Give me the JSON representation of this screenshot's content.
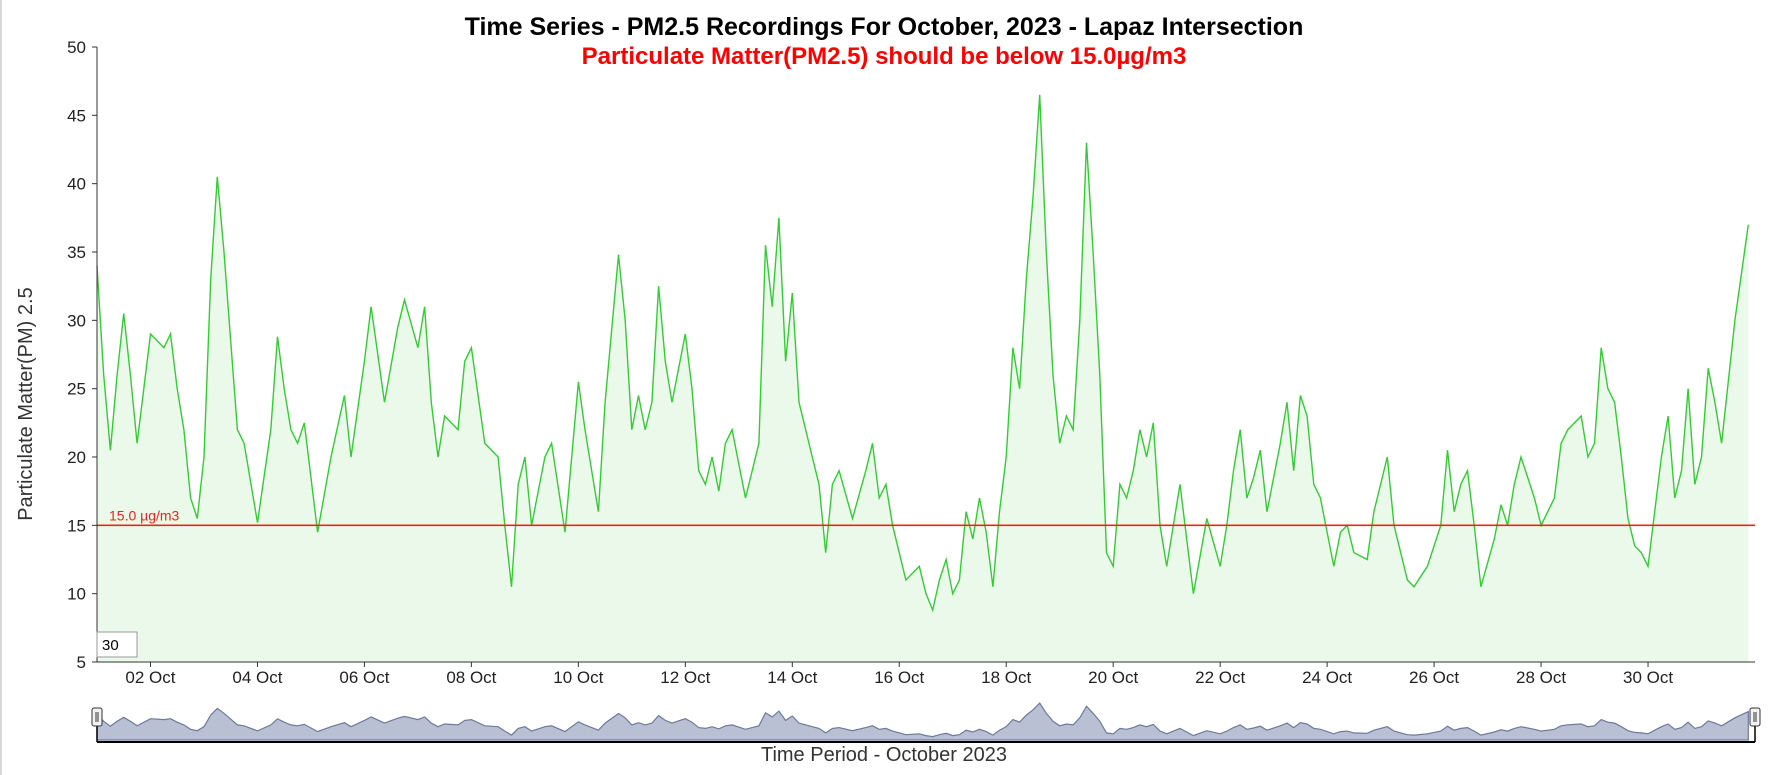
{
  "chart_data": {
    "type": "area",
    "title": "Time Series - PM2.5 Recordings For October, 2023 - Lapaz Intersection",
    "subtitle": "Particulate Matter(PM2.5) should be below 15.0µg/m3",
    "xlabel": "Time Period - October 2023",
    "ylabel": "Particulate Matter(PM) 2.5",
    "x_range": [
      "2023-10-01",
      "2023-11-01"
    ],
    "ylim": [
      5,
      50
    ],
    "y_ticks": [
      5,
      10,
      15,
      20,
      25,
      30,
      35,
      40,
      45,
      50
    ],
    "x_ticks": [
      {
        "date": "2023-10-02",
        "label": "02 Oct"
      },
      {
        "date": "2023-10-04",
        "label": "04 Oct"
      },
      {
        "date": "2023-10-06",
        "label": "06 Oct"
      },
      {
        "date": "2023-10-08",
        "label": "08 Oct"
      },
      {
        "date": "2023-10-10",
        "label": "10 Oct"
      },
      {
        "date": "2023-10-12",
        "label": "12 Oct"
      },
      {
        "date": "2023-10-14",
        "label": "14 Oct"
      },
      {
        "date": "2023-10-16",
        "label": "16 Oct"
      },
      {
        "date": "2023-10-18",
        "label": "18 Oct"
      },
      {
        "date": "2023-10-20",
        "label": "20 Oct"
      },
      {
        "date": "2023-10-22",
        "label": "22 Oct"
      },
      {
        "date": "2023-10-24",
        "label": "24 Oct"
      },
      {
        "date": "2023-10-26",
        "label": "26 Oct"
      },
      {
        "date": "2023-10-28",
        "label": "28 Oct"
      },
      {
        "date": "2023-10-30",
        "label": "30 Oct"
      }
    ],
    "threshold": {
      "value": 15.0,
      "label": "15.0 µg/m3",
      "color": "#e8261c"
    },
    "rolling_window_value": "30",
    "grid": false,
    "colors": {
      "line": "#33cc33",
      "fill": "#ebf9eb",
      "navigator_fill": "#b9c0d4",
      "navigator_line": "#6e7a9a"
    },
    "series": [
      {
        "points": [
          [
            "2023-10-01 00:00",
            34
          ],
          [
            "2023-10-01 03:00",
            26
          ],
          [
            "2023-10-01 06:00",
            20.5
          ],
          [
            "2023-10-01 09:00",
            26
          ],
          [
            "2023-10-01 12:00",
            30.5
          ],
          [
            "2023-10-01 15:00",
            26
          ],
          [
            "2023-10-01 18:00",
            21
          ],
          [
            "2023-10-02 00:00",
            29
          ],
          [
            "2023-10-02 06:00",
            28
          ],
          [
            "2023-10-02 09:00",
            29
          ],
          [
            "2023-10-02 12:00",
            25
          ],
          [
            "2023-10-02 15:00",
            22
          ],
          [
            "2023-10-02 18:00",
            17
          ],
          [
            "2023-10-02 21:00",
            15.5
          ],
          [
            "2023-10-03 00:00",
            20
          ],
          [
            "2023-10-03 03:00",
            33
          ],
          [
            "2023-10-03 06:00",
            40.5
          ],
          [
            "2023-10-03 09:00",
            35
          ],
          [
            "2023-10-03 12:00",
            28.5
          ],
          [
            "2023-10-03 15:00",
            22
          ],
          [
            "2023-10-03 18:00",
            21
          ],
          [
            "2023-10-04 00:00",
            15.2
          ],
          [
            "2023-10-04 06:00",
            22
          ],
          [
            "2023-10-04 09:00",
            28.8
          ],
          [
            "2023-10-04 12:00",
            25
          ],
          [
            "2023-10-04 15:00",
            22
          ],
          [
            "2023-10-04 18:00",
            21
          ],
          [
            "2023-10-04 21:00",
            22.5
          ],
          [
            "2023-10-05 03:00",
            14.5
          ],
          [
            "2023-10-05 09:00",
            20
          ],
          [
            "2023-10-05 15:00",
            24.5
          ],
          [
            "2023-10-05 18:00",
            20
          ],
          [
            "2023-10-06 00:00",
            27
          ],
          [
            "2023-10-06 03:00",
            31
          ],
          [
            "2023-10-06 09:00",
            24
          ],
          [
            "2023-10-06 15:00",
            29.5
          ],
          [
            "2023-10-06 18:00",
            31.5
          ],
          [
            "2023-10-07 00:00",
            28
          ],
          [
            "2023-10-07 03:00",
            31
          ],
          [
            "2023-10-07 06:00",
            24
          ],
          [
            "2023-10-07 09:00",
            20
          ],
          [
            "2023-10-07 12:00",
            23
          ],
          [
            "2023-10-07 18:00",
            22
          ],
          [
            "2023-10-07 21:00",
            27
          ],
          [
            "2023-10-08 00:00",
            28
          ],
          [
            "2023-10-08 06:00",
            21
          ],
          [
            "2023-10-08 12:00",
            20
          ],
          [
            "2023-10-08 15:00",
            15
          ],
          [
            "2023-10-08 18:00",
            10.5
          ],
          [
            "2023-10-08 21:00",
            18
          ],
          [
            "2023-10-09 00:00",
            20
          ],
          [
            "2023-10-09 03:00",
            15
          ],
          [
            "2023-10-09 09:00",
            20
          ],
          [
            "2023-10-09 12:00",
            21
          ],
          [
            "2023-10-09 18:00",
            14.5
          ],
          [
            "2023-10-10 00:00",
            25.5
          ],
          [
            "2023-10-10 03:00",
            22
          ],
          [
            "2023-10-10 09:00",
            16
          ],
          [
            "2023-10-10 12:00",
            24
          ],
          [
            "2023-10-10 18:00",
            34.8
          ],
          [
            "2023-10-10 21:00",
            30
          ],
          [
            "2023-10-11 00:00",
            22
          ],
          [
            "2023-10-11 03:00",
            24.5
          ],
          [
            "2023-10-11 06:00",
            22
          ],
          [
            "2023-10-11 09:00",
            24
          ],
          [
            "2023-10-11 12:00",
            32.5
          ],
          [
            "2023-10-11 15:00",
            27
          ],
          [
            "2023-10-11 18:00",
            24
          ],
          [
            "2023-10-12 00:00",
            29
          ],
          [
            "2023-10-12 03:00",
            25
          ],
          [
            "2023-10-12 06:00",
            19
          ],
          [
            "2023-10-12 09:00",
            18
          ],
          [
            "2023-10-12 12:00",
            20
          ],
          [
            "2023-10-12 15:00",
            17.5
          ],
          [
            "2023-10-12 18:00",
            21
          ],
          [
            "2023-10-12 21:00",
            22
          ],
          [
            "2023-10-13 03:00",
            17
          ],
          [
            "2023-10-13 09:00",
            21
          ],
          [
            "2023-10-13 12:00",
            35.5
          ],
          [
            "2023-10-13 15:00",
            31
          ],
          [
            "2023-10-13 18:00",
            37.5
          ],
          [
            "2023-10-13 21:00",
            27
          ],
          [
            "2023-10-14 00:00",
            32
          ],
          [
            "2023-10-14 03:00",
            24
          ],
          [
            "2023-10-14 09:00",
            20
          ],
          [
            "2023-10-14 12:00",
            18
          ],
          [
            "2023-10-14 15:00",
            13
          ],
          [
            "2023-10-14 18:00",
            18
          ],
          [
            "2023-10-14 21:00",
            19
          ],
          [
            "2023-10-15 03:00",
            15.5
          ],
          [
            "2023-10-15 09:00",
            19
          ],
          [
            "2023-10-15 12:00",
            21
          ],
          [
            "2023-10-15 15:00",
            17
          ],
          [
            "2023-10-15 18:00",
            18
          ],
          [
            "2023-10-15 21:00",
            15
          ],
          [
            "2023-10-16 03:00",
            11
          ],
          [
            "2023-10-16 09:00",
            12
          ],
          [
            "2023-10-16 12:00",
            10
          ],
          [
            "2023-10-16 15:00",
            8.8
          ],
          [
            "2023-10-16 18:00",
            11
          ],
          [
            "2023-10-16 21:00",
            12.5
          ],
          [
            "2023-10-17 00:00",
            10
          ],
          [
            "2023-10-17 03:00",
            11
          ],
          [
            "2023-10-17 06:00",
            16
          ],
          [
            "2023-10-17 09:00",
            14
          ],
          [
            "2023-10-17 12:00",
            17
          ],
          [
            "2023-10-17 15:00",
            14.5
          ],
          [
            "2023-10-17 18:00",
            10.5
          ],
          [
            "2023-10-17 21:00",
            16
          ],
          [
            "2023-10-18 00:00",
            20
          ],
          [
            "2023-10-18 03:00",
            28
          ],
          [
            "2023-10-18 06:00",
            25
          ],
          [
            "2023-10-18 09:00",
            33
          ],
          [
            "2023-10-18 12:00",
            39
          ],
          [
            "2023-10-18 15:00",
            46.5
          ],
          [
            "2023-10-18 18:00",
            35
          ],
          [
            "2023-10-18 21:00",
            26
          ],
          [
            "2023-10-19 00:00",
            21
          ],
          [
            "2023-10-19 03:00",
            23
          ],
          [
            "2023-10-19 06:00",
            22
          ],
          [
            "2023-10-19 09:00",
            30
          ],
          [
            "2023-10-19 12:00",
            43
          ],
          [
            "2023-10-19 15:00",
            35
          ],
          [
            "2023-10-19 18:00",
            26
          ],
          [
            "2023-10-19 21:00",
            13
          ],
          [
            "2023-10-20 00:00",
            12
          ],
          [
            "2023-10-20 03:00",
            18
          ],
          [
            "2023-10-20 06:00",
            17
          ],
          [
            "2023-10-20 09:00",
            19
          ],
          [
            "2023-10-20 12:00",
            22
          ],
          [
            "2023-10-20 15:00",
            20
          ],
          [
            "2023-10-20 18:00",
            22.5
          ],
          [
            "2023-10-20 21:00",
            15
          ],
          [
            "2023-10-21 00:00",
            12
          ],
          [
            "2023-10-21 06:00",
            18
          ],
          [
            "2023-10-21 09:00",
            14
          ],
          [
            "2023-10-21 12:00",
            10
          ],
          [
            "2023-10-21 18:00",
            15.5
          ],
          [
            "2023-10-22 00:00",
            12
          ],
          [
            "2023-10-22 03:00",
            15
          ],
          [
            "2023-10-22 06:00",
            19
          ],
          [
            "2023-10-22 09:00",
            22
          ],
          [
            "2023-10-22 12:00",
            17
          ],
          [
            "2023-10-22 15:00",
            18.5
          ],
          [
            "2023-10-22 18:00",
            20.5
          ],
          [
            "2023-10-22 21:00",
            16
          ],
          [
            "2023-10-23 03:00",
            21
          ],
          [
            "2023-10-23 06:00",
            24
          ],
          [
            "2023-10-23 09:00",
            19
          ],
          [
            "2023-10-23 12:00",
            24.5
          ],
          [
            "2023-10-23 15:00",
            23
          ],
          [
            "2023-10-23 18:00",
            18
          ],
          [
            "2023-10-23 21:00",
            17
          ],
          [
            "2023-10-24 03:00",
            12
          ],
          [
            "2023-10-24 06:00",
            14.5
          ],
          [
            "2023-10-24 09:00",
            15
          ],
          [
            "2023-10-24 12:00",
            13
          ],
          [
            "2023-10-24 18:00",
            12.5
          ],
          [
            "2023-10-24 21:00",
            16
          ],
          [
            "2023-10-25 03:00",
            20
          ],
          [
            "2023-10-25 06:00",
            15
          ],
          [
            "2023-10-25 09:00",
            13
          ],
          [
            "2023-10-25 12:00",
            11
          ],
          [
            "2023-10-25 15:00",
            10.5
          ],
          [
            "2023-10-25 21:00",
            12
          ],
          [
            "2023-10-26 03:00",
            15
          ],
          [
            "2023-10-26 06:00",
            20.5
          ],
          [
            "2023-10-26 09:00",
            16
          ],
          [
            "2023-10-26 12:00",
            18
          ],
          [
            "2023-10-26 15:00",
            19
          ],
          [
            "2023-10-26 18:00",
            15
          ],
          [
            "2023-10-26 21:00",
            10.5
          ],
          [
            "2023-10-27 03:00",
            14
          ],
          [
            "2023-10-27 06:00",
            16.5
          ],
          [
            "2023-10-27 09:00",
            15
          ],
          [
            "2023-10-27 12:00",
            18
          ],
          [
            "2023-10-27 15:00",
            20
          ],
          [
            "2023-10-27 21:00",
            17
          ],
          [
            "2023-10-28 00:00",
            15
          ],
          [
            "2023-10-28 06:00",
            17
          ],
          [
            "2023-10-28 09:00",
            21
          ],
          [
            "2023-10-28 12:00",
            22
          ],
          [
            "2023-10-28 15:00",
            22.5
          ],
          [
            "2023-10-28 18:00",
            23
          ],
          [
            "2023-10-28 21:00",
            20
          ],
          [
            "2023-10-29 00:00",
            21
          ],
          [
            "2023-10-29 03:00",
            28
          ],
          [
            "2023-10-29 06:00",
            25
          ],
          [
            "2023-10-29 09:00",
            24
          ],
          [
            "2023-10-29 12:00",
            20
          ],
          [
            "2023-10-29 15:00",
            15.5
          ],
          [
            "2023-10-29 18:00",
            13.5
          ],
          [
            "2023-10-29 21:00",
            13
          ],
          [
            "2023-10-30 00:00",
            12
          ],
          [
            "2023-10-30 03:00",
            16
          ],
          [
            "2023-10-30 06:00",
            20
          ],
          [
            "2023-10-30 09:00",
            23
          ],
          [
            "2023-10-30 12:00",
            17
          ],
          [
            "2023-10-30 15:00",
            19
          ],
          [
            "2023-10-30 18:00",
            25
          ],
          [
            "2023-10-30 21:00",
            18
          ],
          [
            "2023-10-31 00:00",
            20
          ],
          [
            "2023-10-31 03:00",
            26.5
          ],
          [
            "2023-10-31 06:00",
            24
          ],
          [
            "2023-10-31 09:00",
            21
          ],
          [
            "2023-10-31 15:00",
            30
          ],
          [
            "2023-10-31 21:00",
            37
          ]
        ]
      }
    ]
  }
}
